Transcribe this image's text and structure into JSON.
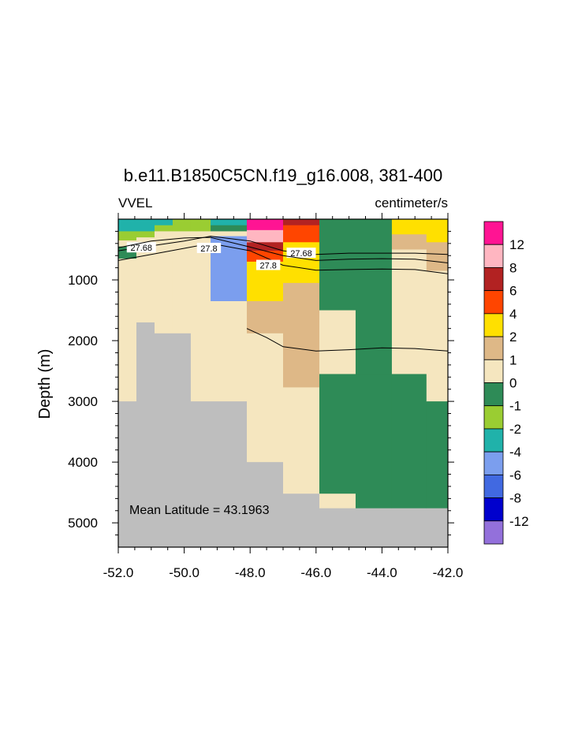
{
  "chart_data": {
    "type": "heatmap",
    "title": "b.e11.B1850C5CN.f19_g16.008, 381-400",
    "left_label": "VVEL",
    "right_label": "centimeter/s",
    "xlabel": "",
    "ylabel": "Depth (m)",
    "xlim": [
      -52,
      -42
    ],
    "ylim": [
      5400,
      0
    ],
    "y_reversed": true,
    "x_ticks": [
      -52,
      -50,
      -48,
      -46,
      -44,
      -42
    ],
    "x_tick_labels": [
      "-52.0",
      "-50.0",
      "-48.0",
      "-46.0",
      "-44.0",
      "-42.0"
    ],
    "y_ticks": [
      1000,
      2000,
      3000,
      4000,
      5000
    ],
    "y_tick_labels": [
      "1000",
      "2000",
      "3000",
      "4000",
      "5000"
    ],
    "annotation": "Mean Latitude = 43.1963",
    "legend_placement": "right",
    "colorbar": {
      "labels": [
        "12",
        "8",
        "6",
        "4",
        "2",
        "1",
        "0",
        "-1",
        "-2",
        "-4",
        "-6",
        "-8",
        "-12"
      ],
      "colors": [
        "#FF1493",
        "#FFB6C1",
        "#B22222",
        "#FF4500",
        "#FFE000",
        "#DEB887",
        "#F5E6BF",
        "#2E8B57",
        "#9ACD32",
        "#20B2AA",
        "#7B9EEE",
        "#4169E1",
        "#0000CD",
        "#9370DB"
      ]
    },
    "land_color": "#BEBEBE",
    "cells": [
      {
        "x0": -52.0,
        "x1": -51.45,
        "y0": 0,
        "y1": 200,
        "color": "#20B2AA"
      },
      {
        "x0": -52.0,
        "x1": -51.45,
        "y0": 200,
        "y1": 350,
        "color": "#9ACD32"
      },
      {
        "x0": -52.0,
        "x1": -51.45,
        "y0": 350,
        "y1": 450,
        "color": "#F5E6BF"
      },
      {
        "x0": -52.0,
        "x1": -51.45,
        "y0": 450,
        "y1": 650,
        "color": "#2E8B57"
      },
      {
        "x0": -52.0,
        "x1": -51.45,
        "y0": 650,
        "y1": 3000,
        "color": "#F5E6BF"
      },
      {
        "x0": -52.0,
        "x1": -51.45,
        "y0": 3000,
        "y1": 5400,
        "color": "#BEBEBE"
      },
      {
        "x0": -51.45,
        "x1": -50.9,
        "y0": 0,
        "y1": 200,
        "color": "#20B2AA"
      },
      {
        "x0": -51.45,
        "x1": -50.9,
        "y0": 200,
        "y1": 300,
        "color": "#9ACD32"
      },
      {
        "x0": -51.45,
        "x1": -50.9,
        "y0": 300,
        "y1": 1700,
        "color": "#F5E6BF"
      },
      {
        "x0": -51.45,
        "x1": -50.9,
        "y0": 1700,
        "y1": 5400,
        "color": "#BEBEBE"
      },
      {
        "x0": -50.9,
        "x1": -50.35,
        "y0": 0,
        "y1": 100,
        "color": "#20B2AA"
      },
      {
        "x0": -50.9,
        "x1": -50.35,
        "y0": 100,
        "y1": 200,
        "color": "#9ACD32"
      },
      {
        "x0": -50.9,
        "x1": -50.35,
        "y0": 200,
        "y1": 1880,
        "color": "#F5E6BF"
      },
      {
        "x0": -50.9,
        "x1": -50.35,
        "y0": 1880,
        "y1": 5400,
        "color": "#BEBEBE"
      },
      {
        "x0": -50.35,
        "x1": -49.8,
        "y0": 0,
        "y1": 100,
        "color": "#9ACD32"
      },
      {
        "x0": -50.35,
        "x1": -49.8,
        "y0": 100,
        "y1": 200,
        "color": "#9ACD32"
      },
      {
        "x0": -50.35,
        "x1": -49.8,
        "y0": 200,
        "y1": 1880,
        "color": "#F5E6BF"
      },
      {
        "x0": -50.35,
        "x1": -49.8,
        "y0": 1880,
        "y1": 5400,
        "color": "#BEBEBE"
      },
      {
        "x0": -49.8,
        "x1": -49.2,
        "y0": 0,
        "y1": 200,
        "color": "#9ACD32"
      },
      {
        "x0": -49.8,
        "x1": -49.2,
        "y0": 200,
        "y1": 3000,
        "color": "#F5E6BF"
      },
      {
        "x0": -49.8,
        "x1": -49.2,
        "y0": 3000,
        "y1": 5400,
        "color": "#BEBEBE"
      },
      {
        "x0": -49.2,
        "x1": -48.1,
        "y0": 0,
        "y1": 100,
        "color": "#20B2AA"
      },
      {
        "x0": -49.2,
        "x1": -48.1,
        "y0": 100,
        "y1": 200,
        "color": "#2E8B57"
      },
      {
        "x0": -49.2,
        "x1": -48.1,
        "y0": 200,
        "y1": 280,
        "color": "#F5E6BF"
      },
      {
        "x0": -49.2,
        "x1": -48.1,
        "y0": 280,
        "y1": 1350,
        "color": "#7B9EEE"
      },
      {
        "x0": -49.2,
        "x1": -48.1,
        "y0": 1350,
        "y1": 3000,
        "color": "#F5E6BF"
      },
      {
        "x0": -49.2,
        "x1": -48.1,
        "y0": 3000,
        "y1": 5400,
        "color": "#BEBEBE"
      },
      {
        "x0": -48.1,
        "x1": -47.0,
        "y0": 0,
        "y1": 180,
        "color": "#FF1493"
      },
      {
        "x0": -48.1,
        "x1": -47.0,
        "y0": 180,
        "y1": 380,
        "color": "#FFB6C1"
      },
      {
        "x0": -48.1,
        "x1": -47.0,
        "y0": 380,
        "y1": 520,
        "color": "#B22222"
      },
      {
        "x0": -48.1,
        "x1": -47.0,
        "y0": 520,
        "y1": 700,
        "color": "#FF4500"
      },
      {
        "x0": -48.1,
        "x1": -47.0,
        "y0": 700,
        "y1": 1350,
        "color": "#FFE000"
      },
      {
        "x0": -48.1,
        "x1": -47.0,
        "y0": 1350,
        "y1": 1880,
        "color": "#DEB887"
      },
      {
        "x0": -48.1,
        "x1": -47.0,
        "y0": 1880,
        "y1": 4000,
        "color": "#F5E6BF"
      },
      {
        "x0": -48.1,
        "x1": -47.0,
        "y0": 4000,
        "y1": 5400,
        "color": "#BEBEBE"
      },
      {
        "x0": -47.0,
        "x1": -45.9,
        "y0": 0,
        "y1": 100,
        "color": "#B22222"
      },
      {
        "x0": -47.0,
        "x1": -45.9,
        "y0": 100,
        "y1": 380,
        "color": "#FF4500"
      },
      {
        "x0": -47.0,
        "x1": -45.9,
        "y0": 380,
        "y1": 1050,
        "color": "#FFE000"
      },
      {
        "x0": -47.0,
        "x1": -45.9,
        "y0": 1050,
        "y1": 2770,
        "color": "#DEB887"
      },
      {
        "x0": -47.0,
        "x1": -45.9,
        "y0": 2770,
        "y1": 4520,
        "color": "#F5E6BF"
      },
      {
        "x0": -47.0,
        "x1": -45.9,
        "y0": 4520,
        "y1": 5400,
        "color": "#BEBEBE"
      },
      {
        "x0": -45.9,
        "x1": -44.8,
        "y0": 0,
        "y1": 1500,
        "color": "#2E8B57"
      },
      {
        "x0": -45.9,
        "x1": -44.8,
        "y0": 1500,
        "y1": 2550,
        "color": "#F5E6BF"
      },
      {
        "x0": -45.9,
        "x1": -44.8,
        "y0": 2550,
        "y1": 4520,
        "color": "#2E8B57"
      },
      {
        "x0": -45.9,
        "x1": -44.8,
        "y0": 4520,
        "y1": 4760,
        "color": "#F5E6BF"
      },
      {
        "x0": -45.9,
        "x1": -44.8,
        "y0": 4760,
        "y1": 5400,
        "color": "#BEBEBE"
      },
      {
        "x0": -44.8,
        "x1": -43.7,
        "y0": 0,
        "y1": 2550,
        "color": "#2E8B57"
      },
      {
        "x0": -44.8,
        "x1": -43.7,
        "y0": 2550,
        "y1": 4760,
        "color": "#2E8B57"
      },
      {
        "x0": -44.8,
        "x1": -43.7,
        "y0": 4760,
        "y1": 5400,
        "color": "#BEBEBE"
      },
      {
        "x0": -43.7,
        "x1": -42.65,
        "y0": 0,
        "y1": 250,
        "color": "#FFE000"
      },
      {
        "x0": -43.7,
        "x1": -42.65,
        "y0": 250,
        "y1": 500,
        "color": "#DEB887"
      },
      {
        "x0": -43.7,
        "x1": -42.65,
        "y0": 500,
        "y1": 2550,
        "color": "#F5E6BF"
      },
      {
        "x0": -43.7,
        "x1": -42.65,
        "y0": 2550,
        "y1": 4760,
        "color": "#2E8B57"
      },
      {
        "x0": -43.7,
        "x1": -42.65,
        "y0": 4760,
        "y1": 5400,
        "color": "#BEBEBE"
      },
      {
        "x0": -42.65,
        "x1": -42.0,
        "y0": 0,
        "y1": 380,
        "color": "#FFE000"
      },
      {
        "x0": -42.65,
        "x1": -42.0,
        "y0": 380,
        "y1": 850,
        "color": "#DEB887"
      },
      {
        "x0": -42.65,
        "x1": -42.0,
        "y0": 850,
        "y1": 3000,
        "color": "#F5E6BF"
      },
      {
        "x0": -42.65,
        "x1": -42.0,
        "y0": 3000,
        "y1": 4760,
        "color": "#2E8B57"
      },
      {
        "x0": -42.65,
        "x1": -42.0,
        "y0": 4760,
        "y1": 5400,
        "color": "#BEBEBE"
      }
    ],
    "contours": [
      {
        "value": 27.68,
        "label": "27.68",
        "points": [
          [
            -52,
            520
          ],
          [
            -51,
            440
          ],
          [
            -50,
            360
          ],
          [
            -49.2,
            280
          ],
          [
            -48,
            360
          ],
          [
            -47,
            520
          ],
          [
            -46,
            580
          ],
          [
            -45,
            560
          ],
          [
            -44,
            560
          ],
          [
            -43,
            560
          ],
          [
            -42,
            580
          ]
        ],
        "label_at": [
          [
            -51.3,
            470
          ],
          [
            -46.45,
            560
          ]
        ]
      },
      {
        "value": 27.8,
        "label": "27.8",
        "points": [
          [
            -52,
            680
          ],
          [
            -51,
            580
          ],
          [
            -50,
            480
          ],
          [
            -49.2,
            400
          ],
          [
            -48,
            520
          ],
          [
            -47,
            760
          ],
          [
            -46,
            840
          ],
          [
            -45,
            830
          ],
          [
            -44,
            820
          ],
          [
            -43,
            830
          ],
          [
            -42,
            900
          ]
        ],
        "label_at": [
          [
            -49.25,
            480
          ],
          [
            -47.45,
            760
          ]
        ]
      },
      {
        "value": 0,
        "label": "",
        "points": [
          [
            -52,
            470
          ],
          [
            -51,
            360
          ],
          [
            -50,
            310
          ],
          [
            -49.2,
            300
          ],
          [
            -48,
            460
          ],
          [
            -47,
            600
          ],
          [
            -46,
            680
          ],
          [
            -45,
            660
          ],
          [
            -44,
            650
          ],
          [
            -43,
            660
          ],
          [
            -42,
            720
          ]
        ],
        "label_at": []
      },
      {
        "value": 0,
        "label": "",
        "points": [
          [
            -48.1,
            1800
          ],
          [
            -47.5,
            1950
          ],
          [
            -47.0,
            2100
          ],
          [
            -46,
            2170
          ],
          [
            -45,
            2150
          ],
          [
            -44,
            2120
          ],
          [
            -43,
            2130
          ],
          [
            -42,
            2170
          ]
        ],
        "label_at": []
      }
    ]
  }
}
